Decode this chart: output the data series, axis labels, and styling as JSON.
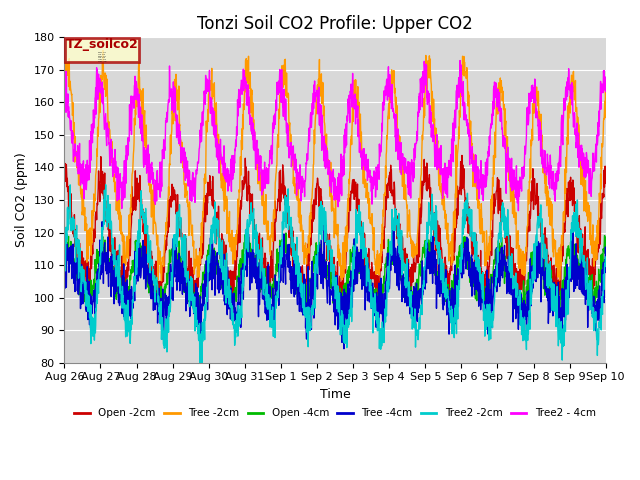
{
  "title": "Tonzi Soil CO2 Profile: Upper CO2",
  "ylabel": "Soil CO2 (ppm)",
  "xlabel": "Time",
  "legend_label": "TZ_soilco2",
  "ylim": [
    80,
    180
  ],
  "series": [
    {
      "label": "Open -2cm",
      "color": "#cc0000",
      "base": 118,
      "amp": 14,
      "phase": 1.2,
      "noise": 3,
      "trend": 0.0
    },
    {
      "label": "Tree -2cm",
      "color": "#ff9900",
      "base": 138,
      "amp": 25,
      "phase": 0.8,
      "noise": 3,
      "trend": 0.0
    },
    {
      "label": "Open -4cm",
      "color": "#00bb00",
      "base": 107,
      "amp": 7,
      "phase": 1.0,
      "noise": 2,
      "trend": 0.0
    },
    {
      "label": "Tree -4cm",
      "color": "#0000cc",
      "base": 104,
      "amp": 7,
      "phase": 0.5,
      "noise": 4,
      "trend": 0.0
    },
    {
      "label": "Tree2 -2cm",
      "color": "#00cccc",
      "base": 107,
      "amp": 16,
      "phase": 0.2,
      "noise": 3,
      "trend": 0.0
    },
    {
      "label": "Tree2 - 4cm",
      "color": "#ff00ff",
      "base": 148,
      "amp": 14,
      "phase": 1.6,
      "noise": 3,
      "trend": 0.0
    }
  ],
  "xtick_labels": [
    "Aug 26",
    "Aug 27",
    "Aug 28",
    "Aug 29",
    "Aug 30",
    "Aug 31",
    "Sep 1",
    "Sep 2",
    "Sep 3",
    "Sep 4",
    "Sep 5",
    "Sep 6",
    "Sep 7",
    "Sep 8",
    "Sep 9",
    "Sep 10"
  ],
  "n_points": 1680,
  "period": 120,
  "bg_color": "#d8d8d8",
  "legend_box_color": "#ffffcc",
  "legend_box_edge": "#aa0000",
  "linewidth": 1.0,
  "title_fontsize": 12,
  "tick_fontsize": 8,
  "axis_label_fontsize": 9
}
